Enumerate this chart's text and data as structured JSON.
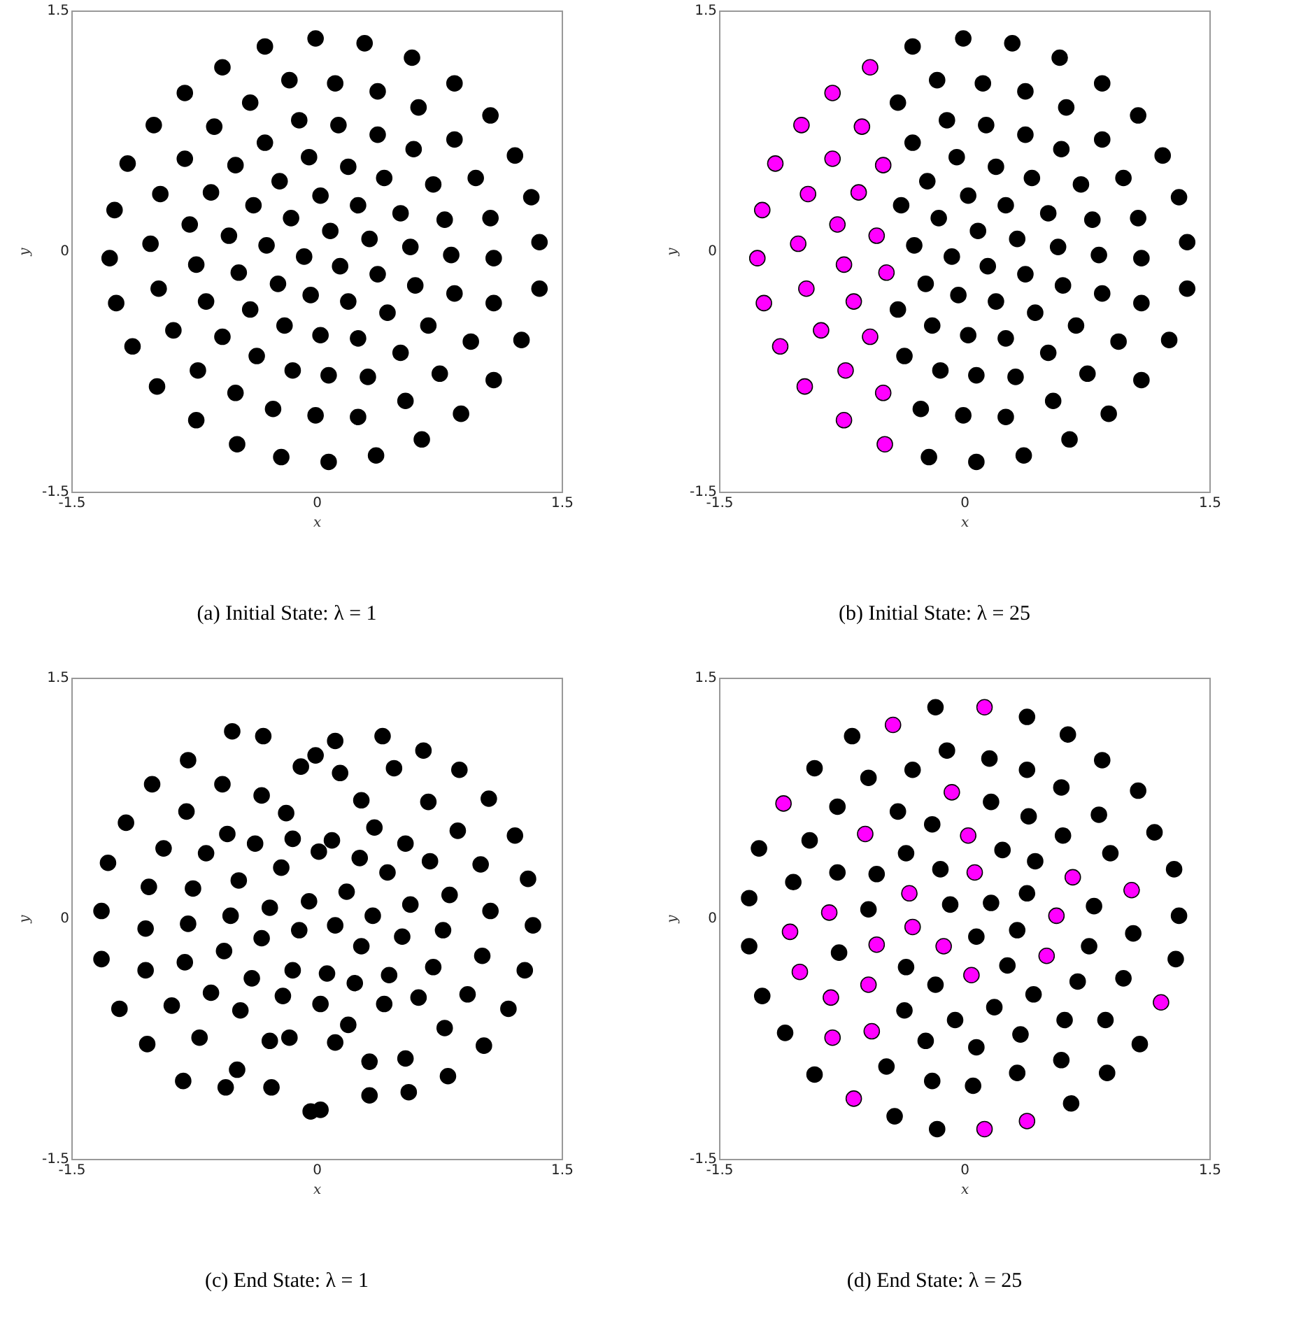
{
  "chart_data": [
    {
      "type": "scatter",
      "title": "(a) Initial State: λ = 1",
      "xlabel": "x",
      "ylabel": "y",
      "xlim": [
        -1.5,
        1.5
      ],
      "ylim": [
        -1.5,
        1.5
      ],
      "xticks": [
        -1.5,
        0,
        1.5
      ],
      "yticks": [
        -1.5,
        0,
        1.5
      ],
      "grid": false,
      "legend": false,
      "marker": "circle",
      "series": [
        {
          "color": "#000000",
          "x": [
            -0.01,
            0.29,
            -0.32,
            0.58,
            -0.58,
            -0.17,
            0.11,
            0.84,
            0.37,
            -0.81,
            -0.41,
            0.62,
            1.06,
            -0.11,
            0.13,
            -1.0,
            -0.63,
            0.37,
            0.84,
            -0.32,
            0.59,
            1.21,
            -0.05,
            -0.81,
            -1.16,
            -0.5,
            0.19,
            0.41,
            0.97,
            -0.23,
            0.71,
            -0.65,
            -0.96,
            0.02,
            1.31,
            -0.39,
            0.25,
            -1.24,
            0.51,
            -0.16,
            0.78,
            1.06,
            -0.78,
            0.08,
            -0.54,
            0.32,
            1.36,
            -1.02,
            -0.31,
            0.57,
            -0.08,
            0.82,
            1.08,
            -1.27,
            0.14,
            -0.74,
            -0.48,
            0.37,
            -0.24,
            0.6,
            -0.97,
            1.36,
            -0.04,
            0.84,
            -0.68,
            0.19,
            -1.23,
            1.08,
            -0.41,
            0.43,
            -0.2,
            -0.88,
            0.68,
            0.02,
            0.25,
            -0.58,
            1.25,
            0.94,
            -1.13,
            0.51,
            -0.37,
            -0.73,
            -0.15,
            0.75,
            0.07,
            0.31,
            1.08,
            -0.98,
            -0.5,
            0.54,
            -0.27,
            0.88,
            -0.01,
            0.25,
            -0.74,
            0.64,
            -0.49,
            0.36,
            -0.22,
            0.07
          ],
          "values": [
            1.33,
            1.3,
            1.28,
            1.21,
            1.15,
            1.07,
            1.05,
            1.05,
            1.0,
            0.99,
            0.93,
            0.9,
            0.85,
            0.82,
            0.79,
            0.79,
            0.78,
            0.73,
            0.7,
            0.68,
            0.64,
            0.6,
            0.59,
            0.58,
            0.55,
            0.54,
            0.53,
            0.46,
            0.46,
            0.44,
            0.42,
            0.37,
            0.36,
            0.35,
            0.34,
            0.29,
            0.29,
            0.26,
            0.24,
            0.21,
            0.2,
            0.21,
            0.17,
            0.13,
            0.1,
            0.08,
            0.06,
            0.05,
            0.04,
            0.03,
            -0.03,
            -0.02,
            -0.04,
            -0.04,
            -0.09,
            -0.08,
            -0.13,
            -0.14,
            -0.2,
            -0.21,
            -0.23,
            -0.23,
            -0.27,
            -0.26,
            -0.31,
            -0.31,
            -0.32,
            -0.32,
            -0.36,
            -0.38,
            -0.46,
            -0.49,
            -0.46,
            -0.52,
            -0.54,
            -0.53,
            -0.55,
            -0.56,
            -0.59,
            -0.63,
            -0.65,
            -0.74,
            -0.74,
            -0.76,
            -0.77,
            -0.78,
            -0.8,
            -0.84,
            -0.88,
            -0.93,
            -0.98,
            -1.01,
            -1.02,
            -1.03,
            -1.05,
            -1.17,
            -1.2,
            -1.27,
            -1.28,
            -1.31
          ]
        }
      ]
    },
    {
      "type": "scatter",
      "title": "(b) Initial State: λ = 25",
      "xlabel": "x",
      "ylabel": "y",
      "xlim": [
        -1.5,
        1.5
      ],
      "ylim": [
        -1.5,
        1.5
      ],
      "xticks": [
        -1.5,
        0,
        1.5
      ],
      "yticks": [
        -1.5,
        0,
        1.5
      ],
      "grid": false,
      "legend": false,
      "marker": "circle",
      "series": [
        {
          "color": "#ff00ff",
          "x": [
            -0.58,
            -0.81,
            -1.0,
            -0.63,
            -0.81,
            -1.16,
            -0.5,
            -0.65,
            -0.96,
            -1.24,
            -0.78,
            -0.54,
            -1.02,
            -1.27,
            -0.74,
            -0.48,
            -0.97,
            -0.68,
            -1.23,
            -0.88,
            -0.58,
            -1.13,
            -0.73,
            -0.98,
            -0.5,
            -0.74,
            -0.49
          ],
          "values": [
            1.15,
            0.99,
            0.79,
            0.78,
            0.58,
            0.55,
            0.54,
            0.37,
            0.36,
            0.26,
            0.17,
            0.1,
            0.05,
            -0.04,
            -0.08,
            -0.13,
            -0.23,
            -0.31,
            -0.32,
            -0.49,
            -0.53,
            -0.59,
            -0.74,
            -0.84,
            -0.88,
            -1.05,
            -1.2
          ]
        },
        {
          "color": "#000000",
          "x": [
            -0.01,
            0.29,
            -0.32,
            0.58,
            -0.17,
            0.11,
            0.84,
            0.37,
            -0.41,
            0.62,
            1.06,
            -0.11,
            0.13,
            0.37,
            0.84,
            -0.32,
            0.59,
            1.21,
            -0.05,
            0.19,
            0.41,
            0.97,
            -0.23,
            0.71,
            0.02,
            1.31,
            -0.39,
            0.25,
            0.51,
            -0.16,
            0.78,
            1.06,
            0.08,
            0.32,
            1.36,
            -0.31,
            0.57,
            -0.08,
            0.82,
            1.08,
            0.14,
            0.37,
            -0.24,
            0.6,
            1.36,
            -0.04,
            0.84,
            0.19,
            1.08,
            -0.41,
            0.43,
            -0.2,
            0.68,
            0.02,
            0.25,
            1.25,
            0.94,
            0.51,
            -0.37,
            -0.15,
            0.75,
            0.07,
            0.31,
            1.08,
            0.54,
            -0.27,
            0.88,
            -0.01,
            0.25,
            0.64,
            0.36,
            -0.22,
            0.07
          ],
          "values": [
            1.33,
            1.3,
            1.28,
            1.21,
            1.07,
            1.05,
            1.05,
            1.0,
            0.93,
            0.9,
            0.85,
            0.82,
            0.79,
            0.73,
            0.7,
            0.68,
            0.64,
            0.6,
            0.59,
            0.53,
            0.46,
            0.46,
            0.44,
            0.42,
            0.35,
            0.34,
            0.29,
            0.29,
            0.24,
            0.21,
            0.2,
            0.21,
            0.13,
            0.08,
            0.06,
            0.04,
            0.03,
            -0.03,
            -0.02,
            -0.04,
            -0.09,
            -0.14,
            -0.2,
            -0.21,
            -0.23,
            -0.27,
            -0.26,
            -0.31,
            -0.32,
            -0.36,
            -0.38,
            -0.46,
            -0.46,
            -0.52,
            -0.54,
            -0.55,
            -0.56,
            -0.63,
            -0.65,
            -0.74,
            -0.76,
            -0.77,
            -0.78,
            -0.8,
            -0.93,
            -0.98,
            -1.01,
            -1.02,
            -1.03,
            -1.17,
            -1.27,
            -1.28,
            -1.31
          ]
        }
      ]
    },
    {
      "type": "scatter",
      "title": "(c) End State: λ = 1",
      "xlabel": "x",
      "ylabel": "y",
      "xlim": [
        -1.5,
        1.5
      ],
      "ylim": [
        -1.5,
        1.5
      ],
      "xticks": [
        -1.5,
        0,
        1.5
      ],
      "yticks": [
        -1.5,
        0,
        1.5
      ],
      "grid": false,
      "legend": false,
      "marker": "circle",
      "series": [
        {
          "color": "#000000",
          "x": [
            -0.52,
            -0.33,
            0.11,
            0.4,
            0.65,
            -0.79,
            -0.01,
            -0.1,
            0.14,
            0.47,
            0.87,
            -1.01,
            -0.58,
            -0.34,
            0.27,
            0.68,
            1.05,
            -0.8,
            -0.19,
            -1.17,
            0.35,
            0.86,
            1.21,
            -0.55,
            -0.94,
            -0.38,
            -0.15,
            0.09,
            0.01,
            -0.68,
            0.54,
            0.26,
            0.69,
            -1.28,
            -0.22,
            0.43,
            1.0,
            1.29,
            -1.03,
            -0.76,
            -0.48,
            0.18,
            0.81,
            -0.05,
            0.57,
            -1.32,
            -0.29,
            -0.53,
            0.34,
            1.06,
            -1.05,
            -0.79,
            -0.11,
            0.11,
            0.77,
            1.32,
            -0.34,
            0.52,
            0.27,
            -0.57,
            -1.32,
            1.01,
            -1.05,
            -0.81,
            -0.15,
            0.06,
            0.44,
            0.71,
            1.27,
            -0.4,
            0.23,
            -0.65,
            -0.21,
            0.92,
            0.02,
            0.41,
            0.62,
            -1.21,
            -0.89,
            -0.47,
            1.17,
            0.19,
            0.78,
            -1.04,
            -0.72,
            -0.29,
            -0.17,
            0.11,
            1.02,
            0.32,
            0.54,
            -0.49,
            -0.82,
            -0.56,
            -0.28,
            0.8,
            0.32,
            0.56,
            -0.04,
            0.02
          ],
          "values": [
            1.17,
            1.14,
            1.11,
            1.14,
            1.05,
            0.99,
            1.02,
            0.95,
            0.91,
            0.94,
            0.93,
            0.84,
            0.84,
            0.77,
            0.74,
            0.73,
            0.75,
            0.67,
            0.66,
            0.6,
            0.57,
            0.55,
            0.52,
            0.53,
            0.44,
            0.47,
            0.5,
            0.49,
            0.42,
            0.41,
            0.47,
            0.38,
            0.36,
            0.35,
            0.32,
            0.29,
            0.34,
            0.25,
            0.2,
            0.19,
            0.24,
            0.17,
            0.15,
            0.11,
            0.09,
            0.05,
            0.07,
            0.02,
            0.02,
            0.05,
            -0.06,
            -0.03,
            -0.07,
            -0.04,
            -0.07,
            -0.04,
            -0.12,
            -0.11,
            -0.17,
            -0.2,
            -0.25,
            -0.23,
            -0.32,
            -0.27,
            -0.32,
            -0.34,
            -0.35,
            -0.3,
            -0.32,
            -0.37,
            -0.4,
            -0.46,
            -0.48,
            -0.47,
            -0.53,
            -0.53,
            -0.49,
            -0.56,
            -0.54,
            -0.57,
            -0.56,
            -0.66,
            -0.68,
            -0.78,
            -0.74,
            -0.76,
            -0.74,
            -0.77,
            -0.79,
            -0.89,
            -0.87,
            -0.94,
            -1.01,
            -1.05,
            -1.05,
            -0.98,
            -1.1,
            -1.08,
            -1.2,
            -1.19
          ]
        }
      ]
    },
    {
      "type": "scatter",
      "title": "(d) End State: λ = 25",
      "xlabel": "x",
      "ylabel": "y",
      "xlim": [
        -1.5,
        1.5
      ],
      "ylim": [
        -1.5,
        1.5
      ],
      "xticks": [
        -1.5,
        0,
        1.5
      ],
      "yticks": [
        -1.5,
        0,
        1.5
      ],
      "grid": false,
      "legend": false,
      "marker": "circle",
      "series": [
        {
          "color": "#ff00ff",
          "x": [
            0.12,
            -0.44,
            -1.11,
            -0.08,
            -0.61,
            0.02,
            0.06,
            0.66,
            1.02,
            -0.34,
            -0.83,
            0.56,
            -1.07,
            -0.32,
            -0.54,
            -0.13,
            0.5,
            -1.01,
            0.04,
            -0.59,
            -0.82,
            1.2,
            -0.81,
            -0.57,
            -0.68,
            0.12,
            0.38
          ],
          "values": [
            1.32,
            1.21,
            0.72,
            0.79,
            0.53,
            0.52,
            0.29,
            0.26,
            0.18,
            0.16,
            0.04,
            0.02,
            -0.08,
            -0.05,
            -0.16,
            -0.17,
            -0.23,
            -0.33,
            -0.35,
            -0.41,
            -0.49,
            -0.52,
            -0.74,
            -0.7,
            -1.12,
            -1.31,
            -1.26
          ]
        },
        {
          "color": "#000000",
          "x": [
            -0.18,
            0.38,
            -0.69,
            0.63,
            -0.11,
            0.15,
            -0.92,
            0.38,
            0.84,
            -0.32,
            -0.59,
            0.59,
            1.06,
            -0.78,
            0.16,
            -0.41,
            0.39,
            0.82,
            -0.2,
            1.16,
            0.6,
            -0.95,
            -1.26,
            0.23,
            0.89,
            -0.36,
            0.43,
            1.28,
            -0.78,
            -0.54,
            -0.15,
            -1.05,
            0.38,
            -1.32,
            0.16,
            -0.09,
            -0.59,
            0.79,
            1.31,
            1.03,
            0.32,
            0.07,
            -1.32,
            0.76,
            -0.77,
            1.29,
            -0.36,
            0.26,
            0.97,
            0.69,
            -0.18,
            0.42,
            -1.24,
            0.18,
            -0.37,
            -0.06,
            0.61,
            0.86,
            -1.1,
            0.34,
            -0.24,
            0.07,
            1.07,
            0.59,
            -0.48,
            0.32,
            0.87,
            -0.92,
            -0.2,
            0.05,
            0.65,
            -0.43,
            -0.17
          ],
          "values": [
            1.32,
            1.26,
            1.14,
            1.15,
            1.05,
            1.0,
            0.94,
            0.93,
            0.99,
            0.93,
            0.88,
            0.82,
            0.8,
            0.7,
            0.73,
            0.67,
            0.64,
            0.65,
            0.59,
            0.54,
            0.52,
            0.49,
            0.44,
            0.43,
            0.41,
            0.41,
            0.36,
            0.31,
            0.29,
            0.28,
            0.31,
            0.23,
            0.16,
            0.13,
            0.1,
            0.09,
            0.06,
            0.08,
            0.02,
            -0.09,
            -0.07,
            -0.11,
            -0.17,
            -0.17,
            -0.21,
            -0.25,
            -0.3,
            -0.29,
            -0.37,
            -0.39,
            -0.41,
            -0.47,
            -0.48,
            -0.55,
            -0.57,
            -0.63,
            -0.63,
            -0.63,
            -0.71,
            -0.72,
            -0.76,
            -0.8,
            -0.78,
            -0.88,
            -0.92,
            -0.96,
            -0.96,
            -0.97,
            -1.01,
            -1.04,
            -1.15,
            -1.23,
            -1.31
          ]
        }
      ]
    }
  ]
}
